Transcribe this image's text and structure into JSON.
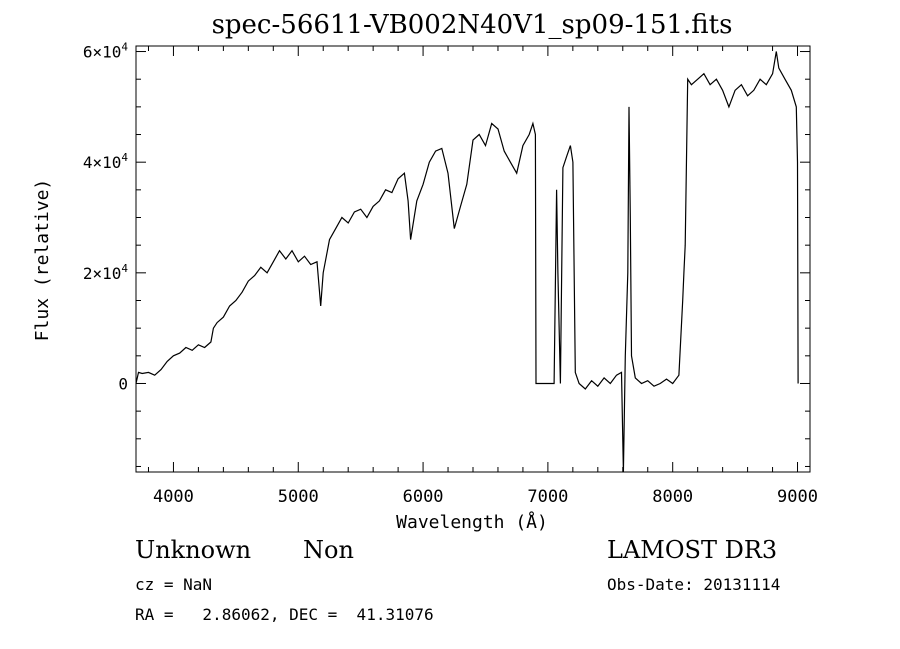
{
  "chart_data": {
    "type": "line",
    "title": "spec-56611-VB002N40V1_sp09-151.fits",
    "xlabel": "Wavelength (Å)",
    "ylabel": "Flux (relative)",
    "xlim": [
      3700,
      9100
    ],
    "ylim": [
      -16000,
      61000
    ],
    "x_ticks": [
      {
        "value": 4000,
        "label": "4000"
      },
      {
        "value": 5000,
        "label": "5000"
      },
      {
        "value": 6000,
        "label": "6000"
      },
      {
        "value": 7000,
        "label": "7000"
      },
      {
        "value": 8000,
        "label": "8000"
      },
      {
        "value": 9000,
        "label": "9000"
      }
    ],
    "y_ticks": [
      {
        "value": 0,
        "label": "0",
        "exp": ""
      },
      {
        "value": 20000,
        "label": "2×10",
        "exp": "4"
      },
      {
        "value": 40000,
        "label": "4×10",
        "exp": "4"
      },
      {
        "value": 60000,
        "label": "6×10",
        "exp": "4"
      }
    ],
    "grid": false,
    "series": [
      {
        "color": "#000000",
        "points": [
          [
            3700,
            0
          ],
          [
            3720,
            2000
          ],
          [
            3750,
            1800
          ],
          [
            3800,
            2000
          ],
          [
            3850,
            1500
          ],
          [
            3900,
            2500
          ],
          [
            3950,
            4000
          ],
          [
            4000,
            5000
          ],
          [
            4050,
            5500
          ],
          [
            4100,
            6500
          ],
          [
            4150,
            6000
          ],
          [
            4200,
            7000
          ],
          [
            4250,
            6500
          ],
          [
            4300,
            7500
          ],
          [
            4320,
            10000
          ],
          [
            4350,
            11000
          ],
          [
            4400,
            12000
          ],
          [
            4450,
            14000
          ],
          [
            4500,
            15000
          ],
          [
            4550,
            16500
          ],
          [
            4600,
            18500
          ],
          [
            4650,
            19500
          ],
          [
            4700,
            21000
          ],
          [
            4750,
            20000
          ],
          [
            4800,
            22000
          ],
          [
            4850,
            24000
          ],
          [
            4900,
            22500
          ],
          [
            4950,
            24000
          ],
          [
            5000,
            22000
          ],
          [
            5050,
            23000
          ],
          [
            5100,
            21500
          ],
          [
            5150,
            22000
          ],
          [
            5180,
            14000
          ],
          [
            5200,
            20000
          ],
          [
            5250,
            26000
          ],
          [
            5300,
            28000
          ],
          [
            5350,
            30000
          ],
          [
            5400,
            29000
          ],
          [
            5450,
            31000
          ],
          [
            5500,
            31500
          ],
          [
            5550,
            30000
          ],
          [
            5600,
            32000
          ],
          [
            5650,
            33000
          ],
          [
            5700,
            35000
          ],
          [
            5750,
            34500
          ],
          [
            5800,
            37000
          ],
          [
            5850,
            38000
          ],
          [
            5880,
            33000
          ],
          [
            5900,
            26000
          ],
          [
            5950,
            33000
          ],
          [
            6000,
            36000
          ],
          [
            6050,
            40000
          ],
          [
            6100,
            42000
          ],
          [
            6150,
            42500
          ],
          [
            6200,
            38000
          ],
          [
            6250,
            28000
          ],
          [
            6300,
            32000
          ],
          [
            6350,
            36000
          ],
          [
            6400,
            44000
          ],
          [
            6450,
            45000
          ],
          [
            6500,
            43000
          ],
          [
            6550,
            47000
          ],
          [
            6600,
            46000
          ],
          [
            6650,
            42000
          ],
          [
            6700,
            40000
          ],
          [
            6750,
            38000
          ],
          [
            6800,
            43000
          ],
          [
            6850,
            45000
          ],
          [
            6880,
            47000
          ],
          [
            6900,
            45000
          ],
          [
            6905,
            0
          ],
          [
            7050,
            0
          ],
          [
            7070,
            35000
          ],
          [
            7080,
            20000
          ],
          [
            7100,
            0
          ],
          [
            7120,
            39000
          ],
          [
            7150,
            41000
          ],
          [
            7180,
            43000
          ],
          [
            7200,
            40000
          ],
          [
            7220,
            2000
          ],
          [
            7250,
            0
          ],
          [
            7300,
            -1000
          ],
          [
            7350,
            500
          ],
          [
            7400,
            -500
          ],
          [
            7450,
            1000
          ],
          [
            7500,
            0
          ],
          [
            7550,
            1500
          ],
          [
            7590,
            2000
          ],
          [
            7605,
            -16000
          ],
          [
            7620,
            5000
          ],
          [
            7640,
            20000
          ],
          [
            7650,
            50000
          ],
          [
            7660,
            30000
          ],
          [
            7670,
            5000
          ],
          [
            7700,
            1000
          ],
          [
            7750,
            0
          ],
          [
            7800,
            500
          ],
          [
            7850,
            -500
          ],
          [
            7900,
            0
          ],
          [
            7950,
            800
          ],
          [
            8000,
            0
          ],
          [
            8050,
            1500
          ],
          [
            8080,
            15000
          ],
          [
            8090,
            20000
          ],
          [
            8100,
            25000
          ],
          [
            8120,
            55000
          ],
          [
            8150,
            54000
          ],
          [
            8200,
            55000
          ],
          [
            8250,
            56000
          ],
          [
            8300,
            54000
          ],
          [
            8350,
            55000
          ],
          [
            8400,
            53000
          ],
          [
            8450,
            50000
          ],
          [
            8500,
            53000
          ],
          [
            8550,
            54000
          ],
          [
            8600,
            52000
          ],
          [
            8650,
            53000
          ],
          [
            8700,
            55000
          ],
          [
            8750,
            54000
          ],
          [
            8800,
            56000
          ],
          [
            8830,
            60000
          ],
          [
            8850,
            57000
          ],
          [
            8900,
            55000
          ],
          [
            8950,
            53000
          ],
          [
            8990,
            50000
          ],
          [
            9000,
            40000
          ],
          [
            9005,
            0
          ]
        ]
      }
    ]
  },
  "info": {
    "object_class": "Unknown",
    "subclass": "Non",
    "survey": "LAMOST DR3",
    "redshift": "cz = NaN",
    "obs_date": "Obs-Date: 20131114",
    "coords": "RA =   2.86062, DEC =  41.31076"
  }
}
